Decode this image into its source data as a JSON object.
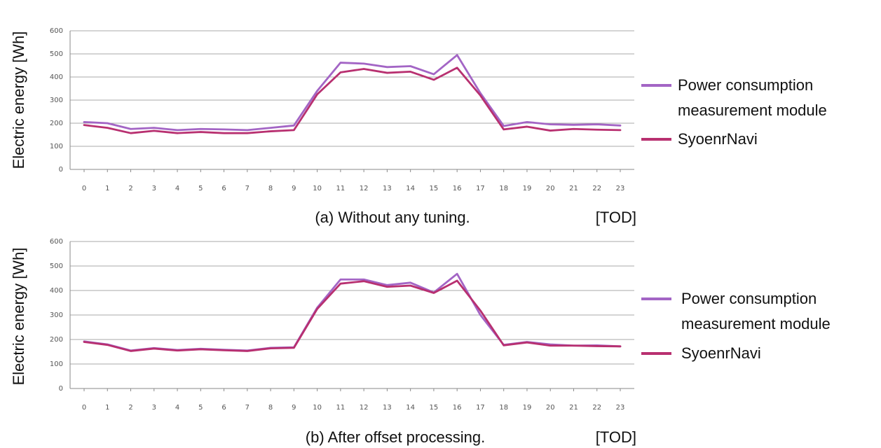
{
  "colors": {
    "power": "#a365c5",
    "syoenr": "#b83070",
    "grid": "#a8a8a8"
  },
  "chart_data": [
    {
      "type": "line",
      "caption": "(a) Without any tuning.",
      "xlabel": "[TOD]",
      "ylabel": "Electric energy [Wh]",
      "ylim": [
        0,
        600
      ],
      "yticks": [
        "0",
        "100",
        "200",
        "300",
        "400",
        "500",
        "600"
      ],
      "grid": true,
      "categories": [
        "0",
        "1",
        "2",
        "3",
        "4",
        "5",
        "6",
        "7",
        "8",
        "9",
        "10",
        "11",
        "12",
        "13",
        "14",
        "15",
        "16",
        "17",
        "18",
        "19",
        "20",
        "21",
        "22",
        "23"
      ],
      "series": [
        {
          "name": "Power consumption measurement module",
          "color_key": "power",
          "values": [
            205,
            200,
            175,
            180,
            170,
            175,
            173,
            170,
            180,
            190,
            340,
            462,
            458,
            443,
            447,
            412,
            495,
            330,
            188,
            205,
            195,
            193,
            195,
            190
          ]
        },
        {
          "name": "SyoenrNavi",
          "color_key": "syoenr",
          "values": [
            192,
            180,
            157,
            167,
            157,
            162,
            157,
            157,
            165,
            170,
            325,
            420,
            435,
            418,
            423,
            388,
            440,
            320,
            173,
            185,
            168,
            175,
            172,
            170
          ]
        }
      ],
      "legend": [
        {
          "lines": [
            "Power consumption",
            "measurement module"
          ],
          "color_key": "power"
        },
        {
          "lines": [
            "SyoenrNavi"
          ],
          "color_key": "syoenr"
        }
      ]
    },
    {
      "type": "line",
      "caption": "(b) After offset processing.",
      "xlabel": "[TOD]",
      "ylabel": "Electric energy [Wh]",
      "ylim": [
        0,
        600
      ],
      "yticks": [
        "0",
        "100",
        "200",
        "300",
        "400",
        "500",
        "600"
      ],
      "grid": true,
      "categories": [
        "0",
        "1",
        "2",
        "3",
        "4",
        "5",
        "6",
        "7",
        "8",
        "9",
        "10",
        "11",
        "12",
        "13",
        "14",
        "15",
        "16",
        "17",
        "18",
        "19",
        "20",
        "21",
        "22",
        "23"
      ],
      "series": [
        {
          "name": "Power consumption measurement module",
          "color_key": "power",
          "values": [
            192,
            180,
            155,
            165,
            157,
            162,
            158,
            155,
            166,
            168,
            330,
            445,
            445,
            422,
            432,
            392,
            468,
            300,
            178,
            190,
            180,
            175,
            176,
            172
          ]
        },
        {
          "name": "SyoenrNavi",
          "color_key": "syoenr",
          "values": [
            190,
            178,
            153,
            163,
            155,
            160,
            156,
            153,
            164,
            166,
            325,
            428,
            438,
            415,
            420,
            390,
            440,
            318,
            176,
            188,
            175,
            175,
            173,
            172
          ]
        }
      ],
      "legend": [
        {
          "lines": [
            "Power consumption",
            "measurement module"
          ],
          "color_key": "power"
        },
        {
          "lines": [
            "SyoenrNavi"
          ],
          "color_key": "syoenr"
        }
      ]
    }
  ]
}
